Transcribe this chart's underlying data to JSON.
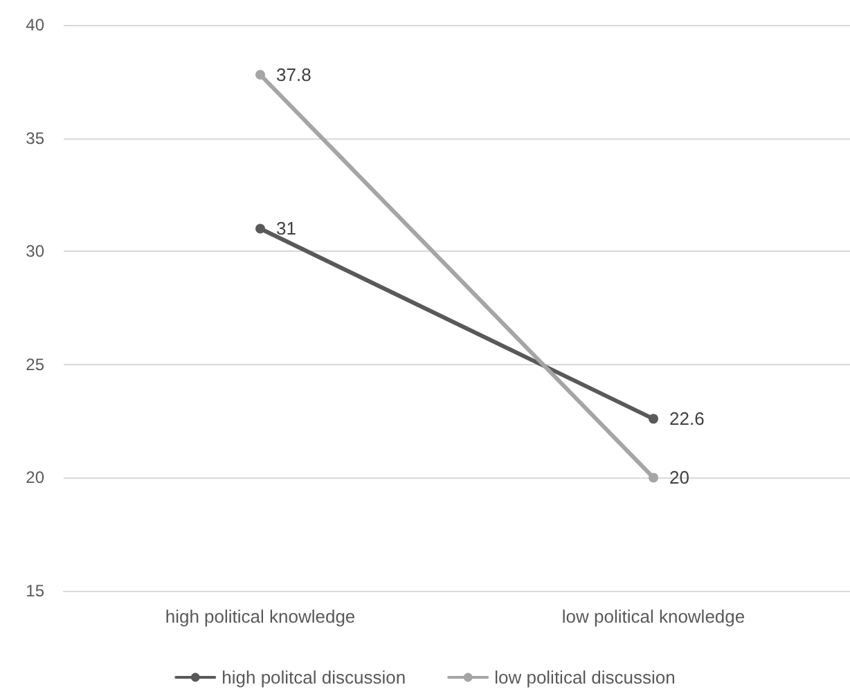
{
  "chart_data": {
    "type": "line",
    "categories": [
      "high political knowledge",
      "low political knowledge"
    ],
    "series": [
      {
        "name": "high politcal discussion",
        "color": "#595959",
        "values": [
          31,
          22.6
        ]
      },
      {
        "name": "low political discussion",
        "color": "#a5a5a5",
        "values": [
          37.8,
          20
        ]
      }
    ],
    "ylim": [
      15,
      40
    ],
    "yticks": [
      15,
      20,
      25,
      30,
      35,
      40
    ],
    "grid": "y",
    "legend": "bottom",
    "marker": "circle",
    "line_style": "solid",
    "data_labels": true
  }
}
